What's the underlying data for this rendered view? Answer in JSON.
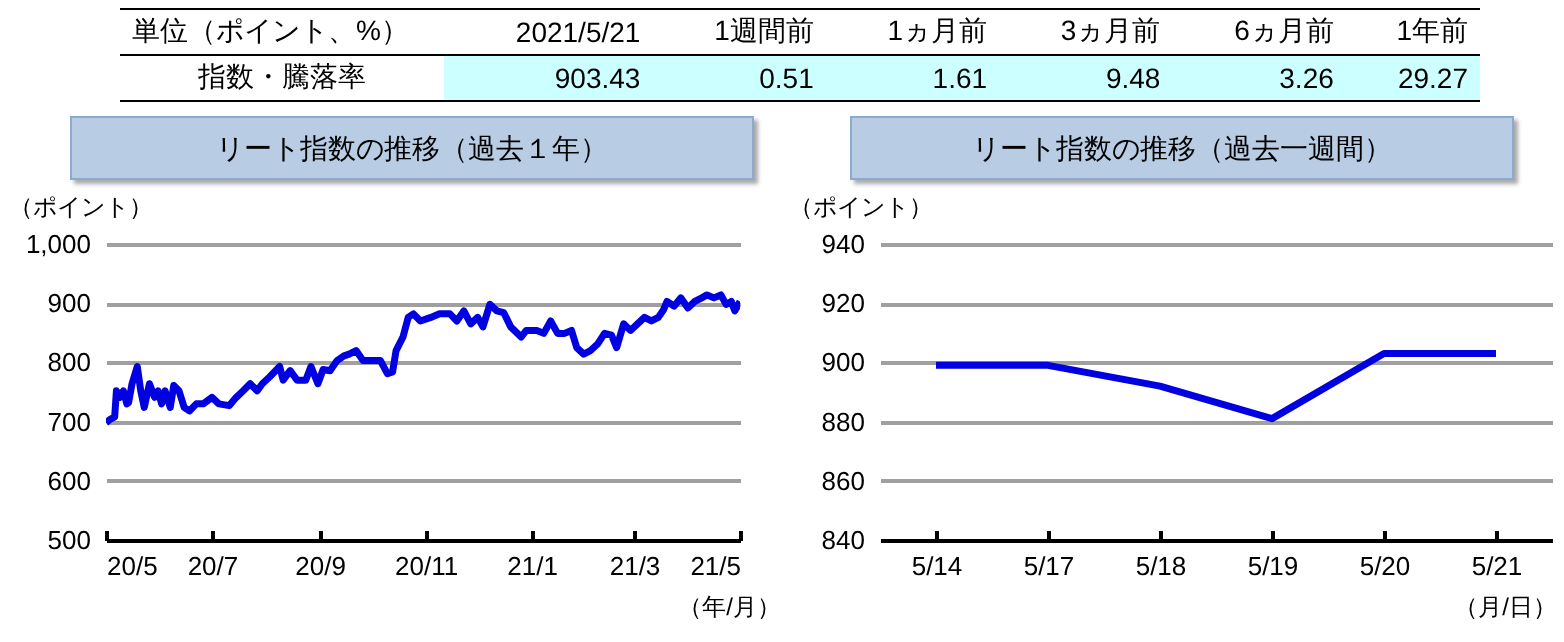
{
  "chart_data": [
    {
      "type": "other",
      "annotations": [
        "単位（ポイント、%）",
        "2021/5/21",
        "1週間前",
        "1ヵ月前",
        "3ヵ月前",
        "6ヵ月前",
        "1年前",
        "指数・騰落率",
        "903.43",
        "0.51",
        "1.61",
        "9.48",
        "3.26",
        "29.27"
      ]
    },
    {
      "type": "line",
      "title": "リート指数の推移（過去１年）",
      "ylabel": "（ポイント）",
      "xlabel": "（年/月）",
      "x": [
        "2020-05-21",
        "2020-05-23",
        "2020-05-26",
        "2020-05-27",
        "2020-05-29",
        "2020-05-31",
        "2020-06-02",
        "2020-06-03",
        "2020-06-05",
        "2020-06-08",
        "2020-06-10",
        "2020-06-12",
        "2020-06-15",
        "2020-06-18",
        "2020-06-20",
        "2020-06-22",
        "2020-06-24",
        "2020-06-27",
        "2020-06-29",
        "2020-07-02",
        "2020-07-05",
        "2020-07-08",
        "2020-07-12",
        "2020-07-16",
        "2020-07-21",
        "2020-07-25",
        "2020-07-31",
        "2020-08-04",
        "2020-08-08",
        "2020-08-12",
        "2020-08-16",
        "2020-08-19",
        "2020-08-23",
        "2020-08-29",
        "2020-08-31",
        "2020-09-04",
        "2020-09-08",
        "2020-09-13",
        "2020-09-16",
        "2020-09-20",
        "2020-09-23",
        "2020-09-27",
        "2020-10-01",
        "2020-10-05",
        "2020-10-08",
        "2020-10-12",
        "2020-10-16",
        "2020-10-22",
        "2020-10-26",
        "2020-10-30",
        "2020-11-02",
        "2020-11-04",
        "2020-11-08",
        "2020-11-11",
        "2020-11-14",
        "2020-11-18",
        "2020-11-24",
        "2020-11-29",
        "2020-12-05",
        "2020-12-09",
        "2020-12-13",
        "2020-12-17",
        "2020-12-21",
        "2020-12-24",
        "2020-12-28",
        "2021-01-01",
        "2021-01-05",
        "2021-01-09",
        "2021-01-15",
        "2021-01-18",
        "2021-01-24",
        "2021-01-28",
        "2021-02-01",
        "2021-02-05",
        "2021-02-09",
        "2021-02-13",
        "2021-02-16",
        "2021-02-20",
        "2021-02-24",
        "2021-02-28",
        "2021-03-04",
        "2021-03-08",
        "2021-03-11",
        "2021-03-15",
        "2021-03-19",
        "2021-03-23",
        "2021-03-27",
        "2021-03-31",
        "2021-04-04",
        "2021-04-07",
        "2021-04-09",
        "2021-04-13",
        "2021-04-17",
        "2021-04-21",
        "2021-04-25",
        "2021-04-29",
        "2021-05-02",
        "2021-05-06",
        "2021-05-10",
        "2021-05-13",
        "2021-05-16",
        "2021-05-18",
        "2021-05-21"
      ],
      "series": [
        {
          "color": "#0000e0",
          "values": [
            698,
            703,
            708,
            752,
            741,
            752,
            730,
            732,
            764,
            793,
            752,
            724,
            764,
            741,
            752,
            730,
            752,
            724,
            761,
            752,
            724,
            718,
            730,
            730,
            741,
            730,
            727,
            741,
            752,
            764,
            752,
            764,
            775,
            793,
            770,
            786,
            770,
            770,
            793,
            764,
            788,
            786,
            803,
            811,
            814,
            820,
            803,
            803,
            803,
            781,
            784,
            820,
            843,
            876,
            882,
            870,
            876,
            882,
            882,
            870,
            887,
            865,
            876,
            860,
            898,
            887,
            884,
            860,
            843,
            854,
            854,
            849,
            870,
            849,
            849,
            854,
            825,
            814,
            820,
            831,
            849,
            846,
            825,
            865,
            854,
            865,
            876,
            870,
            876,
            889,
            903,
            895,
            909,
            892,
            903,
            909,
            914,
            909,
            914,
            898,
            903,
            887,
            903
          ]
        }
      ],
      "xlim": [
        "2020-05-21",
        "2021-05-21"
      ],
      "xticks": [
        {
          "value": "2020-05-21",
          "label": "20/5"
        },
        {
          "value": "2020-07-21",
          "label": "20/7"
        },
        {
          "value": "2020-09-21",
          "label": "20/9"
        },
        {
          "value": "2020-11-21",
          "label": "20/11"
        },
        {
          "value": "2021-01-21",
          "label": "21/1"
        },
        {
          "value": "2021-03-21",
          "label": "21/3"
        },
        {
          "value": "2021-05-21",
          "label": "21/5"
        }
      ],
      "ylim": [
        500,
        1000
      ],
      "yticks": [
        500,
        600,
        700,
        800,
        900,
        {
          "value": 1000,
          "label": "1,000"
        }
      ],
      "grid": "y"
    },
    {
      "type": "line",
      "title": "リート指数の推移（過去一週間）",
      "ylabel": "（ポイント）",
      "xlabel": "（月/日）",
      "categories": [
        "5/14",
        "5/17",
        "5/18",
        "5/19",
        "5/20",
        "5/21"
      ],
      "series": [
        {
          "color": "#0000e0",
          "values": [
            899,
            899,
            892,
            881,
            903,
            903
          ]
        }
      ],
      "ylim": [
        840,
        940
      ],
      "yticks": [
        840,
        860,
        880,
        900,
        920,
        940
      ],
      "grid": "y"
    }
  ]
}
